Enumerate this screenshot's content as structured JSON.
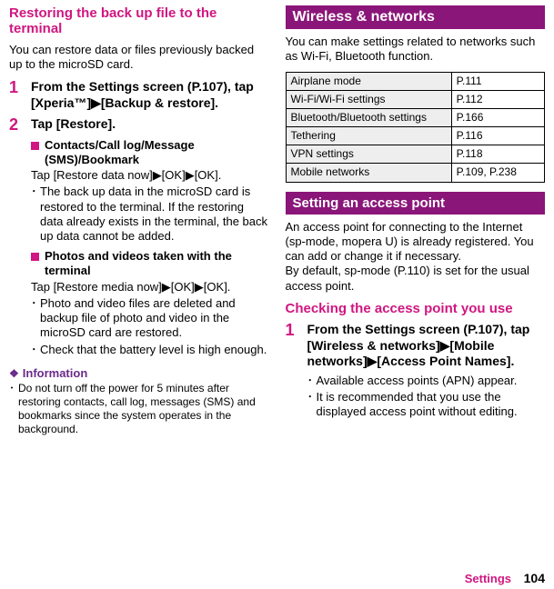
{
  "colors": {
    "accent_pink": "#d01680",
    "accent_purple": "#6a2a8a",
    "banner_bg": "#8a1679",
    "table_header_bg": "#eeeeee",
    "page_bg": "#ffffff",
    "text": "#000000"
  },
  "left": {
    "heading": "Restoring the back up file to the terminal",
    "intro": "You can restore data or files previously backed up to the microSD card.",
    "step1": {
      "num": "1",
      "text": "From the Settings screen (P.107), tap [Xperia™]▶[Backup & restore]."
    },
    "step2": {
      "num": "2",
      "text": "Tap [Restore].",
      "group1": {
        "title": "Contacts/Call log/Message (SMS)/Bookmark",
        "action": "Tap [Restore data now]▶[OK]▶[OK].",
        "bullet1": "The back up data in the microSD card is restored to the terminal. If the restoring data already exists in the terminal, the back up data cannot be added."
      },
      "group2": {
        "title": "Photos and videos taken with the terminal",
        "action": "Tap [Restore media now]▶[OK]▶[OK].",
        "bullet1": "Photo and video files are deleted and backup file of photo and video in the microSD card are restored.",
        "bullet2": "Check that the battery level is high enough."
      }
    },
    "info": {
      "title": "Information",
      "item": "Do not turn off the power for 5 minutes after restoring contacts, call log, messages (SMS) and bookmarks since the system operates in the background."
    }
  },
  "right": {
    "banner1": "Wireless & networks",
    "intro": "You can make settings related to networks such as Wi-Fi, Bluetooth function.",
    "table": {
      "columns": 2,
      "rows": [
        [
          "Airplane mode",
          "P.111"
        ],
        [
          "Wi-Fi/Wi-Fi settings",
          "P.112"
        ],
        [
          "Bluetooth/Bluetooth settings",
          "P.166"
        ],
        [
          "Tethering",
          "P.116"
        ],
        [
          "VPN settings",
          "P.118"
        ],
        [
          "Mobile networks",
          "P.109, P.238"
        ]
      ]
    },
    "banner2": "Setting an access point",
    "para1": "An access point for connecting to the Internet (sp-mode, mopera U) is already registered. You can add or change it if necessary.",
    "para2": "By default, sp-mode (P.110) is set for the usual access point.",
    "subheading": "Checking the access point you use",
    "step1": {
      "num": "1",
      "text": "From the Settings screen (P.107), tap [Wireless & networks]▶[Mobile networks]▶[Access Point Names].",
      "bullet1": "Available access points (APN) appear.",
      "bullet2": "It is recommended that you use the displayed access point without editing."
    }
  },
  "footer": {
    "section": "Settings",
    "page": "104"
  }
}
